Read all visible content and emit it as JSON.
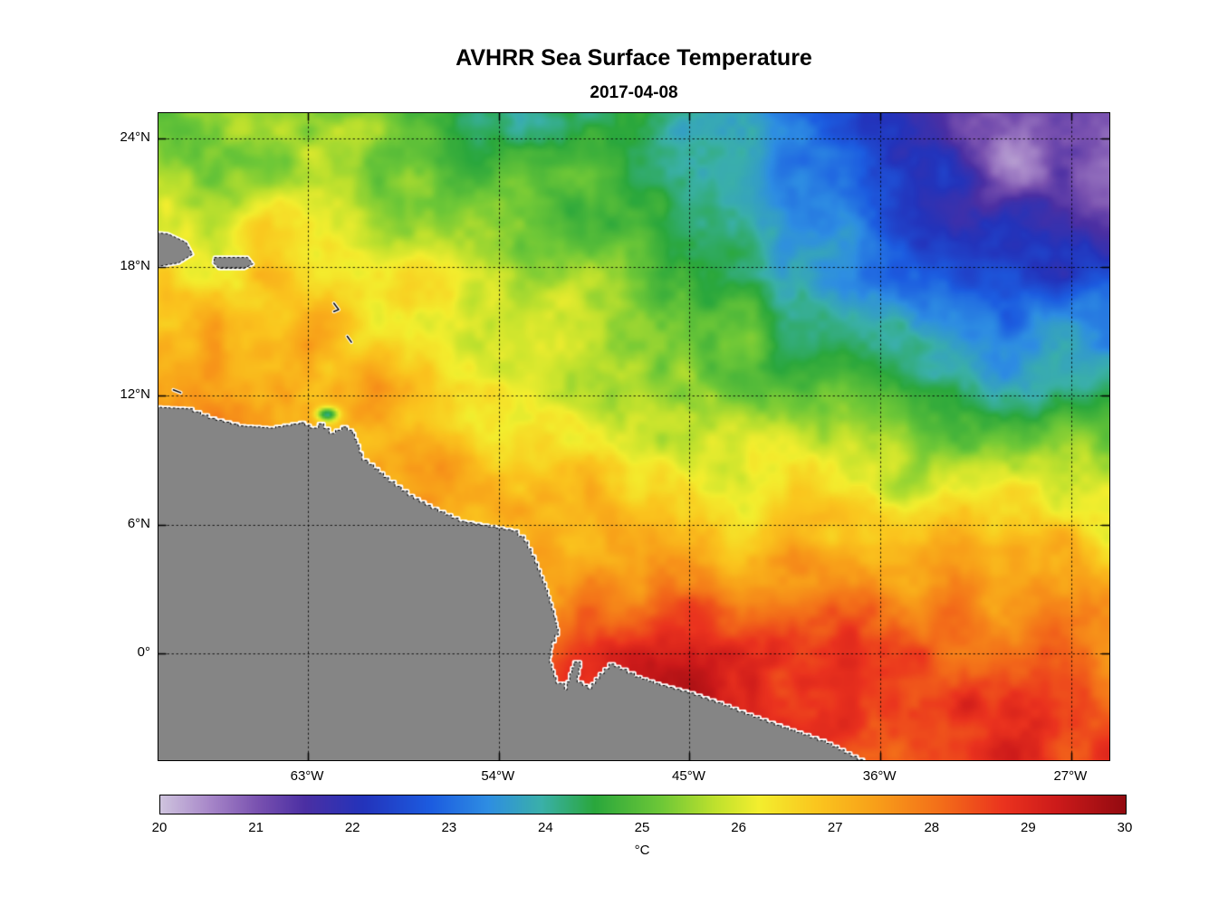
{
  "figure": {
    "title": "AVHRR Sea Surface Temperature",
    "subtitle": "2017-04-08"
  },
  "chart_data": {
    "type": "heatmap",
    "title": "AVHRR Sea Surface Temperature",
    "subtitle": "2017-04-08",
    "units": "°C",
    "colorbar": {
      "min": 20,
      "max": 30,
      "ticks": [
        "20",
        "21",
        "22",
        "23",
        "24",
        "25",
        "26",
        "27",
        "28",
        "29",
        "30"
      ],
      "label": "°C"
    },
    "axes": {
      "lon_range_w": [
        70.05,
        25.2
      ],
      "lat_range": [
        25.18,
        -4.98
      ],
      "lon_ticks": [
        {
          "value": 63,
          "label": "63°W"
        },
        {
          "value": 54,
          "label": "54°W"
        },
        {
          "value": 45,
          "label": "45°W"
        },
        {
          "value": 36,
          "label": "36°W"
        },
        {
          "value": 27,
          "label": "27°W"
        }
      ],
      "lat_ticks": [
        {
          "value": 24,
          "label": "24°N"
        },
        {
          "value": 18,
          "label": "18°N"
        },
        {
          "value": 12,
          "label": "12°N"
        },
        {
          "value": 6,
          "label": "6°N"
        },
        {
          "value": 0,
          "label": "0°"
        }
      ],
      "grid": true
    },
    "sst_grid": {
      "comment_units": "deg C, sea surface temperature sampled on a coarse lon/lat grid read from the image",
      "lons_w": [
        70,
        65,
        60,
        55,
        50,
        45,
        40,
        35,
        30,
        25
      ],
      "lats": [
        25,
        20,
        15,
        10,
        5,
        0,
        -5
      ],
      "values": [
        [
          25.2,
          25.4,
          25.0,
          24.6,
          24.2,
          23.8,
          23.2,
          22.2,
          21.4,
          20.9
        ],
        [
          26.0,
          26.2,
          25.9,
          25.5,
          25.0,
          24.4,
          23.6,
          22.6,
          21.9,
          21.5
        ],
        [
          26.9,
          27.1,
          26.8,
          26.3,
          25.8,
          25.1,
          24.3,
          23.5,
          23.1,
          23.6
        ],
        [
          27.5,
          27.6,
          27.3,
          26.8,
          26.3,
          25.8,
          25.6,
          25.2,
          24.9,
          25.2
        ],
        [
          27.8,
          27.7,
          27.4,
          27.0,
          26.9,
          27.0,
          27.3,
          27.3,
          27.0,
          26.8
        ],
        [
          28.1,
          28.0,
          27.9,
          28.1,
          28.5,
          28.9,
          28.7,
          28.3,
          28.1,
          27.9
        ],
        [
          28.2,
          28.3,
          28.4,
          28.6,
          29.0,
          29.2,
          29.0,
          28.8,
          28.7,
          28.5
        ]
      ]
    },
    "anomalies": [
      {
        "lon_w": 62.1,
        "lat": 11.15,
        "amp": -2.6,
        "rx": 0.5,
        "ry": 0.3
      },
      {
        "lon_w": 30.0,
        "lat": 23.5,
        "amp": -0.7,
        "rx": 4.0,
        "ry": 2.5
      },
      {
        "lon_w": 46.0,
        "lat": -1.2,
        "amp": 0.6,
        "rx": 2.5,
        "ry": 1.2
      },
      {
        "lon_w": 57.0,
        "lat": 9.0,
        "amp": 0.4,
        "rx": 2.0,
        "ry": 1.0
      }
    ],
    "colormap_stops": [
      [
        0.0,
        "#cfc4de"
      ],
      [
        0.05,
        "#a888c9"
      ],
      [
        0.1,
        "#7a52b0"
      ],
      [
        0.15,
        "#4b2fa3"
      ],
      [
        0.21,
        "#2333bb"
      ],
      [
        0.28,
        "#1c5ce0"
      ],
      [
        0.34,
        "#2e8ee2"
      ],
      [
        0.395,
        "#3ab0a9"
      ],
      [
        0.45,
        "#2aa73c"
      ],
      [
        0.52,
        "#6fc837"
      ],
      [
        0.575,
        "#bfe12d"
      ],
      [
        0.62,
        "#f3ee2e"
      ],
      [
        0.68,
        "#fac61e"
      ],
      [
        0.74,
        "#f8a019"
      ],
      [
        0.81,
        "#f36d19"
      ],
      [
        0.875,
        "#ea321e"
      ],
      [
        0.93,
        "#cc1a1a"
      ],
      [
        1.0,
        "#930a10"
      ]
    ],
    "land": {
      "color": "#858585",
      "coast_halo": "#ffffff",
      "mainland": [
        [
          71.0,
          11.5
        ],
        [
          68.8,
          11.4
        ],
        [
          67.7,
          10.95
        ],
        [
          66.3,
          10.6
        ],
        [
          64.9,
          10.5
        ],
        [
          63.4,
          10.75
        ],
        [
          62.9,
          10.5
        ],
        [
          62.5,
          10.7
        ],
        [
          62.0,
          10.25
        ],
        [
          61.4,
          10.55
        ],
        [
          60.9,
          10.25
        ],
        [
          60.7,
          9.7
        ],
        [
          60.45,
          9.0
        ],
        [
          59.9,
          8.6
        ],
        [
          59.2,
          8.0
        ],
        [
          58.3,
          7.35
        ],
        [
          57.2,
          6.75
        ],
        [
          55.9,
          6.15
        ],
        [
          54.5,
          5.9
        ],
        [
          53.4,
          5.7
        ],
        [
          52.8,
          5.2
        ],
        [
          52.3,
          4.2
        ],
        [
          51.8,
          2.95
        ],
        [
          51.4,
          1.7
        ],
        [
          51.2,
          0.85
        ],
        [
          51.5,
          0.25
        ],
        [
          51.6,
          -0.5
        ],
        [
          51.3,
          -1.4
        ],
        [
          50.9,
          -1.7
        ],
        [
          50.65,
          -0.95
        ],
        [
          50.45,
          -0.4
        ],
        [
          50.15,
          -0.65
        ],
        [
          50.3,
          -1.35
        ],
        [
          49.8,
          -1.65
        ],
        [
          49.25,
          -0.95
        ],
        [
          48.8,
          -0.5
        ],
        [
          48.3,
          -0.75
        ],
        [
          47.6,
          -1.1
        ],
        [
          46.4,
          -1.5
        ],
        [
          45.1,
          -1.85
        ],
        [
          43.8,
          -2.3
        ],
        [
          42.4,
          -2.85
        ],
        [
          41.0,
          -3.35
        ],
        [
          39.7,
          -3.8
        ],
        [
          38.6,
          -4.2
        ],
        [
          36.8,
          -5.1
        ],
        [
          36.0,
          -5.6
        ],
        [
          71.0,
          -5.6
        ]
      ],
      "islands": [
        [
          [
            71.2,
            19.7
          ],
          [
            69.6,
            19.55
          ],
          [
            68.75,
            19.15
          ],
          [
            68.45,
            18.6
          ],
          [
            69.1,
            18.2
          ],
          [
            70.3,
            18.0
          ],
          [
            71.2,
            17.95
          ]
        ],
        [
          [
            67.4,
            18.45
          ],
          [
            65.85,
            18.45
          ],
          [
            65.6,
            18.15
          ],
          [
            66.0,
            17.95
          ],
          [
            67.2,
            17.95
          ],
          [
            67.45,
            18.2
          ]
        ]
      ],
      "islets": [
        [
          [
            61.78,
            16.32
          ],
          [
            61.55,
            16.02
          ],
          [
            61.78,
            15.93
          ]
        ],
        [
          [
            61.15,
            14.78
          ],
          [
            60.95,
            14.5
          ]
        ],
        [
          [
            69.35,
            12.28
          ],
          [
            69.0,
            12.15
          ]
        ]
      ]
    }
  }
}
